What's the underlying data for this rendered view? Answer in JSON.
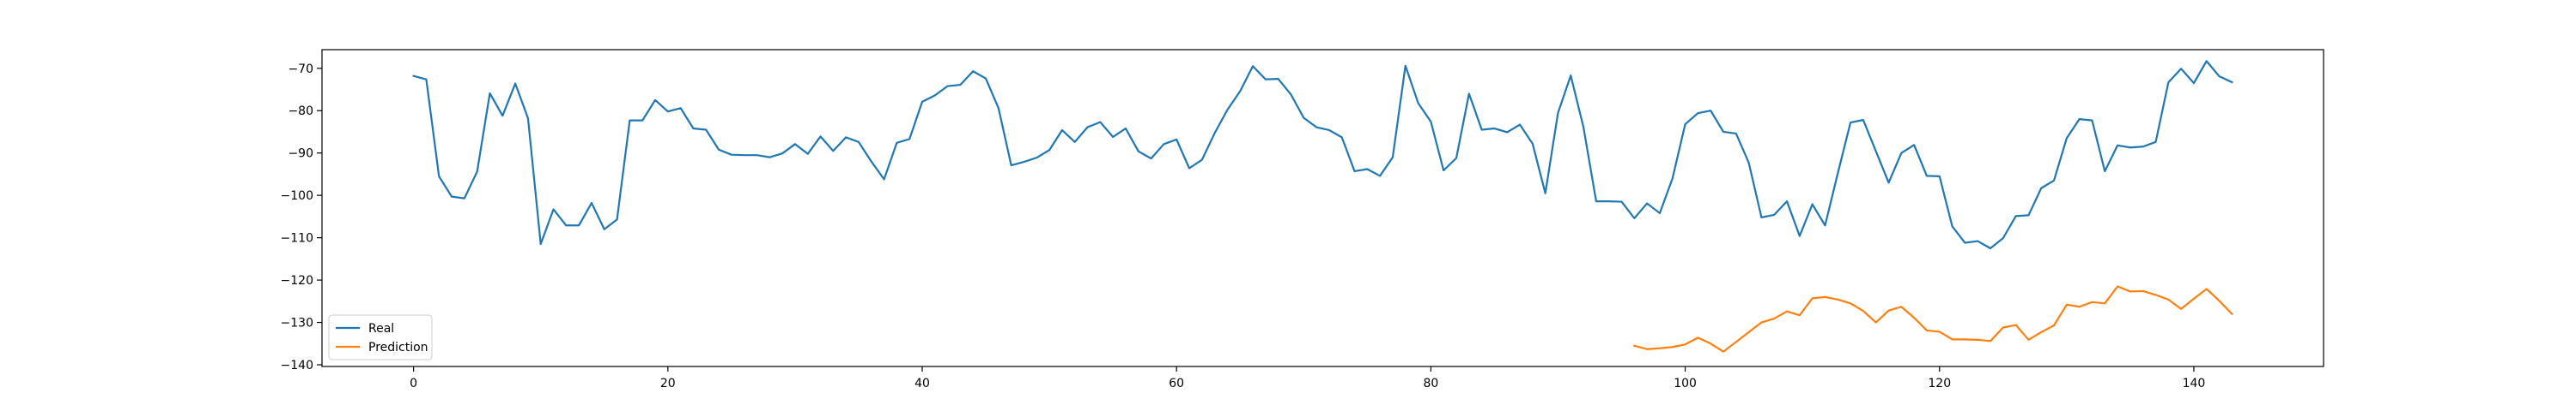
{
  "chart_data": {
    "type": "line",
    "x_ticks": [
      0,
      20,
      40,
      60,
      80,
      100,
      120,
      140
    ],
    "y_ticks": [
      -140,
      -130,
      -120,
      -110,
      -100,
      -90,
      -80,
      -70
    ],
    "xlim": [
      -7.2,
      150.2
    ],
    "ylim": [
      -140.4,
      -65.6
    ],
    "grid": false,
    "legend_position": "lower-left",
    "series": [
      {
        "name": "Real",
        "color": "#1f77b4",
        "x_start": 0,
        "values": [
          -71.8,
          -72.6,
          -95.5,
          -100.3,
          -100.7,
          -94.4,
          -75.9,
          -81.2,
          -73.6,
          -81.8,
          -111.5,
          -103.3,
          -107.1,
          -107.1,
          -101.8,
          -108.0,
          -105.7,
          -82.3,
          -82.3,
          -77.5,
          -80.2,
          -79.4,
          -84.2,
          -84.5,
          -89.2,
          -90.4,
          -90.5,
          -90.5,
          -91.0,
          -90.1,
          -87.9,
          -90.2,
          -86.1,
          -89.5,
          -86.3,
          -87.4,
          -92.0,
          -96.2,
          -87.6,
          -86.7,
          -77.9,
          -76.4,
          -74.2,
          -73.9,
          -70.7,
          -72.4,
          -79.4,
          -92.9,
          -92.1,
          -91.1,
          -89.3,
          -84.6,
          -87.4,
          -83.9,
          -82.7,
          -86.2,
          -84.2,
          -89.6,
          -91.3,
          -87.9,
          -86.8,
          -93.6,
          -91.6,
          -85.3,
          -79.8,
          -75.4,
          -69.5,
          -72.6,
          -72.5,
          -76.2,
          -81.7,
          -83.9,
          -84.6,
          -86.3,
          -94.3,
          -93.8,
          -95.4,
          -91.0,
          -69.4,
          -78.2,
          -82.6,
          -94.1,
          -91.2,
          -76.0,
          -84.5,
          -84.2,
          -85.1,
          -83.3,
          -87.8,
          -99.5,
          -80.5,
          -71.7,
          -83.9,
          -101.4,
          -101.4,
          -101.5,
          -105.4,
          -101.9,
          -104.2,
          -96.0,
          -83.2,
          -80.6,
          -80.0,
          -85.0,
          -85.4,
          -92.3,
          -105.2,
          -104.6,
          -101.4,
          -109.6,
          -102.1,
          -107.1,
          -94.8,
          -82.8,
          -82.2,
          -89.6,
          -97.0,
          -90.0,
          -88.1,
          -95.4,
          -95.5,
          -107.3,
          -111.2,
          -110.8,
          -112.5,
          -110.1,
          -104.9,
          -104.7,
          -98.3,
          -96.5,
          -86.5,
          -82.0,
          -82.3,
          -94.3,
          -88.2,
          -88.7,
          -88.5,
          -87.4,
          -73.3,
          -70.1,
          -73.5,
          -68.3,
          -71.9,
          -73.3
        ]
      },
      {
        "name": "Prediction",
        "color": "#ff7f0e",
        "x_start": 96,
        "values": [
          -135.5,
          -136.3,
          -136.1,
          -135.8,
          -135.2,
          -133.6,
          -135.0,
          -136.9,
          -134.6,
          -132.3,
          -130.0,
          -129.1,
          -127.4,
          -128.3,
          -124.3,
          -124.0,
          -124.6,
          -125.5,
          -127.3,
          -130.0,
          -127.2,
          -126.3,
          -128.9,
          -131.9,
          -132.2,
          -134.0,
          -134.0,
          -134.1,
          -134.4,
          -131.2,
          -130.6,
          -134.1,
          -132.3,
          -130.7,
          -125.8,
          -126.3,
          -125.2,
          -125.5,
          -121.5,
          -122.7,
          -122.6,
          -123.5,
          -124.6,
          -126.8,
          -124.4,
          -122.1,
          -124.9,
          -128.0
        ]
      }
    ]
  }
}
